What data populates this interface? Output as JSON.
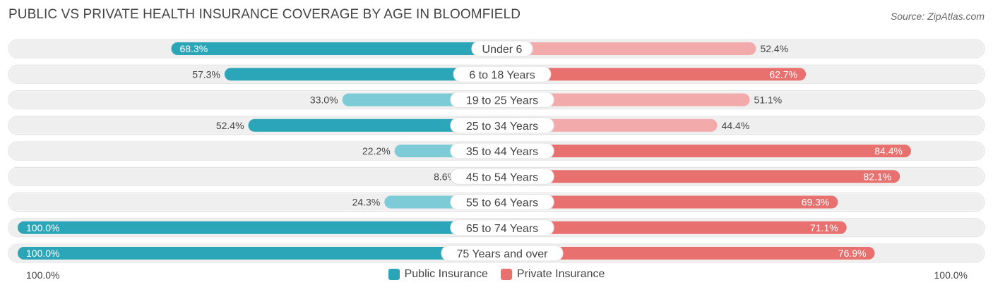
{
  "title": "PUBLIC VS PRIVATE HEALTH INSURANCE COVERAGE BY AGE IN BLOOMFIELD",
  "source": "Source: ZipAtlas.com",
  "colors": {
    "public": "#2ba6b8",
    "public_light": "#7ccbd6",
    "private": "#e8716f",
    "private_light": "#f2abaa",
    "track": "#efefef"
  },
  "legend": {
    "public_label": "Public Insurance",
    "private_label": "Private Insurance"
  },
  "axis": {
    "left_label": "100.0%",
    "right_label": "100.0%"
  },
  "chart_data": {
    "type": "bar",
    "orientation": "horizontal-diverging",
    "title": "PUBLIC VS PRIVATE HEALTH INSURANCE COVERAGE BY AGE IN BLOOMFIELD",
    "categories": [
      "Under 6",
      "6 to 18 Years",
      "19 to 25 Years",
      "25 to 34 Years",
      "35 to 44 Years",
      "45 to 54 Years",
      "55 to 64 Years",
      "65 to 74 Years",
      "75 Years and over"
    ],
    "series": [
      {
        "name": "Public Insurance",
        "values": [
          68.3,
          57.3,
          33.0,
          52.4,
          22.2,
          8.6,
          24.3,
          100.0,
          100.0
        ]
      },
      {
        "name": "Private Insurance",
        "values": [
          52.4,
          62.7,
          51.1,
          44.4,
          84.4,
          82.1,
          69.3,
          71.1,
          76.9
        ]
      }
    ],
    "value_labels": {
      "public": [
        "68.3%",
        "57.3%",
        "33.0%",
        "52.4%",
        "22.2%",
        "8.6%",
        "24.3%",
        "100.0%",
        "100.0%"
      ],
      "private": [
        "52.4%",
        "62.7%",
        "51.1%",
        "44.4%",
        "84.4%",
        "82.1%",
        "69.3%",
        "71.1%",
        "76.9%"
      ]
    },
    "xlim": [
      -100,
      100
    ],
    "legend_position": "bottom-center"
  }
}
